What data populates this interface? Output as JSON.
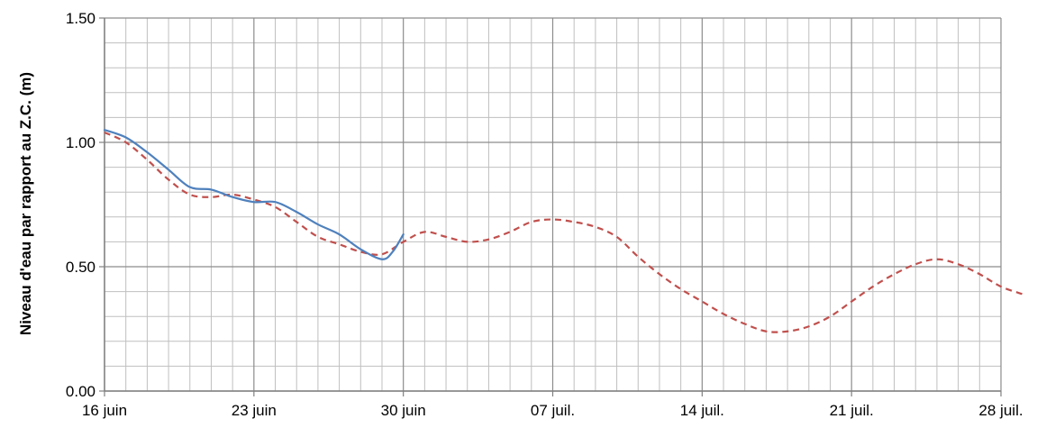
{
  "chart_data": {
    "type": "line",
    "title": "",
    "xlabel": "",
    "ylabel": "Niveau d'eau par rapport au Z.C. (m)",
    "ylim": [
      0,
      1.5
    ],
    "xlim": [
      "2013-06-16",
      "2013-07-28"
    ],
    "x_ticks": [
      "16 juin",
      "23 juin",
      "30 juin",
      "07 juil.",
      "14 juil.",
      "21 juil.",
      "28 juil."
    ],
    "y_ticks": [
      "0.00",
      "0.50",
      "1.00",
      "1.50"
    ],
    "grid": true,
    "minor_grid": true,
    "legend": "none",
    "series": [
      {
        "style": "solid",
        "color": "#4f81bd",
        "points": [
          [
            "2013-06-16",
            1.05
          ],
          [
            "2013-06-17",
            1.02
          ],
          [
            "2013-06-18",
            0.96
          ],
          [
            "2013-06-19",
            0.89
          ],
          [
            "2013-06-20",
            0.82
          ],
          [
            "2013-06-21",
            0.81
          ],
          [
            "2013-06-22",
            0.78
          ],
          [
            "2013-06-23",
            0.76
          ],
          [
            "2013-06-24",
            0.76
          ],
          [
            "2013-06-25",
            0.72
          ],
          [
            "2013-06-26",
            0.67
          ],
          [
            "2013-06-27",
            0.63
          ],
          [
            "2013-06-28",
            0.57
          ],
          [
            "2013-06-29",
            0.53
          ],
          [
            "2013-06-29T12:00",
            0.56
          ],
          [
            "2013-06-30",
            0.63
          ]
        ]
      },
      {
        "style": "dashed",
        "color": "#c0504d",
        "points": [
          [
            "2013-06-16",
            1.04
          ],
          [
            "2013-06-17",
            1.0
          ],
          [
            "2013-06-18",
            0.93
          ],
          [
            "2013-06-19",
            0.85
          ],
          [
            "2013-06-20",
            0.79
          ],
          [
            "2013-06-21",
            0.78
          ],
          [
            "2013-06-22",
            0.79
          ],
          [
            "2013-06-23",
            0.77
          ],
          [
            "2013-06-24",
            0.74
          ],
          [
            "2013-06-25",
            0.68
          ],
          [
            "2013-06-26",
            0.62
          ],
          [
            "2013-06-27",
            0.59
          ],
          [
            "2013-06-28",
            0.56
          ],
          [
            "2013-06-29",
            0.55
          ],
          [
            "2013-06-30",
            0.6
          ],
          [
            "2013-07-01",
            0.64
          ],
          [
            "2013-07-02",
            0.62
          ],
          [
            "2013-07-03",
            0.6
          ],
          [
            "2013-07-04",
            0.61
          ],
          [
            "2013-07-05",
            0.64
          ],
          [
            "2013-07-06",
            0.68
          ],
          [
            "2013-07-07",
            0.69
          ],
          [
            "2013-07-08",
            0.68
          ],
          [
            "2013-07-09",
            0.66
          ],
          [
            "2013-07-10",
            0.62
          ],
          [
            "2013-07-11",
            0.54
          ],
          [
            "2013-07-12",
            0.47
          ],
          [
            "2013-07-13",
            0.41
          ],
          [
            "2013-07-14",
            0.36
          ],
          [
            "2013-07-15",
            0.31
          ],
          [
            "2013-07-16",
            0.27
          ],
          [
            "2013-07-17",
            0.24
          ],
          [
            "2013-07-18",
            0.24
          ],
          [
            "2013-07-19",
            0.26
          ],
          [
            "2013-07-20",
            0.3
          ],
          [
            "2013-07-21",
            0.36
          ],
          [
            "2013-07-22",
            0.42
          ],
          [
            "2013-07-23",
            0.47
          ],
          [
            "2013-07-24",
            0.51
          ],
          [
            "2013-07-25",
            0.53
          ],
          [
            "2013-07-26",
            0.51
          ],
          [
            "2013-07-27",
            0.47
          ],
          [
            "2013-07-28",
            0.42
          ],
          [
            "2013-07-29",
            0.39
          ]
        ]
      }
    ]
  }
}
